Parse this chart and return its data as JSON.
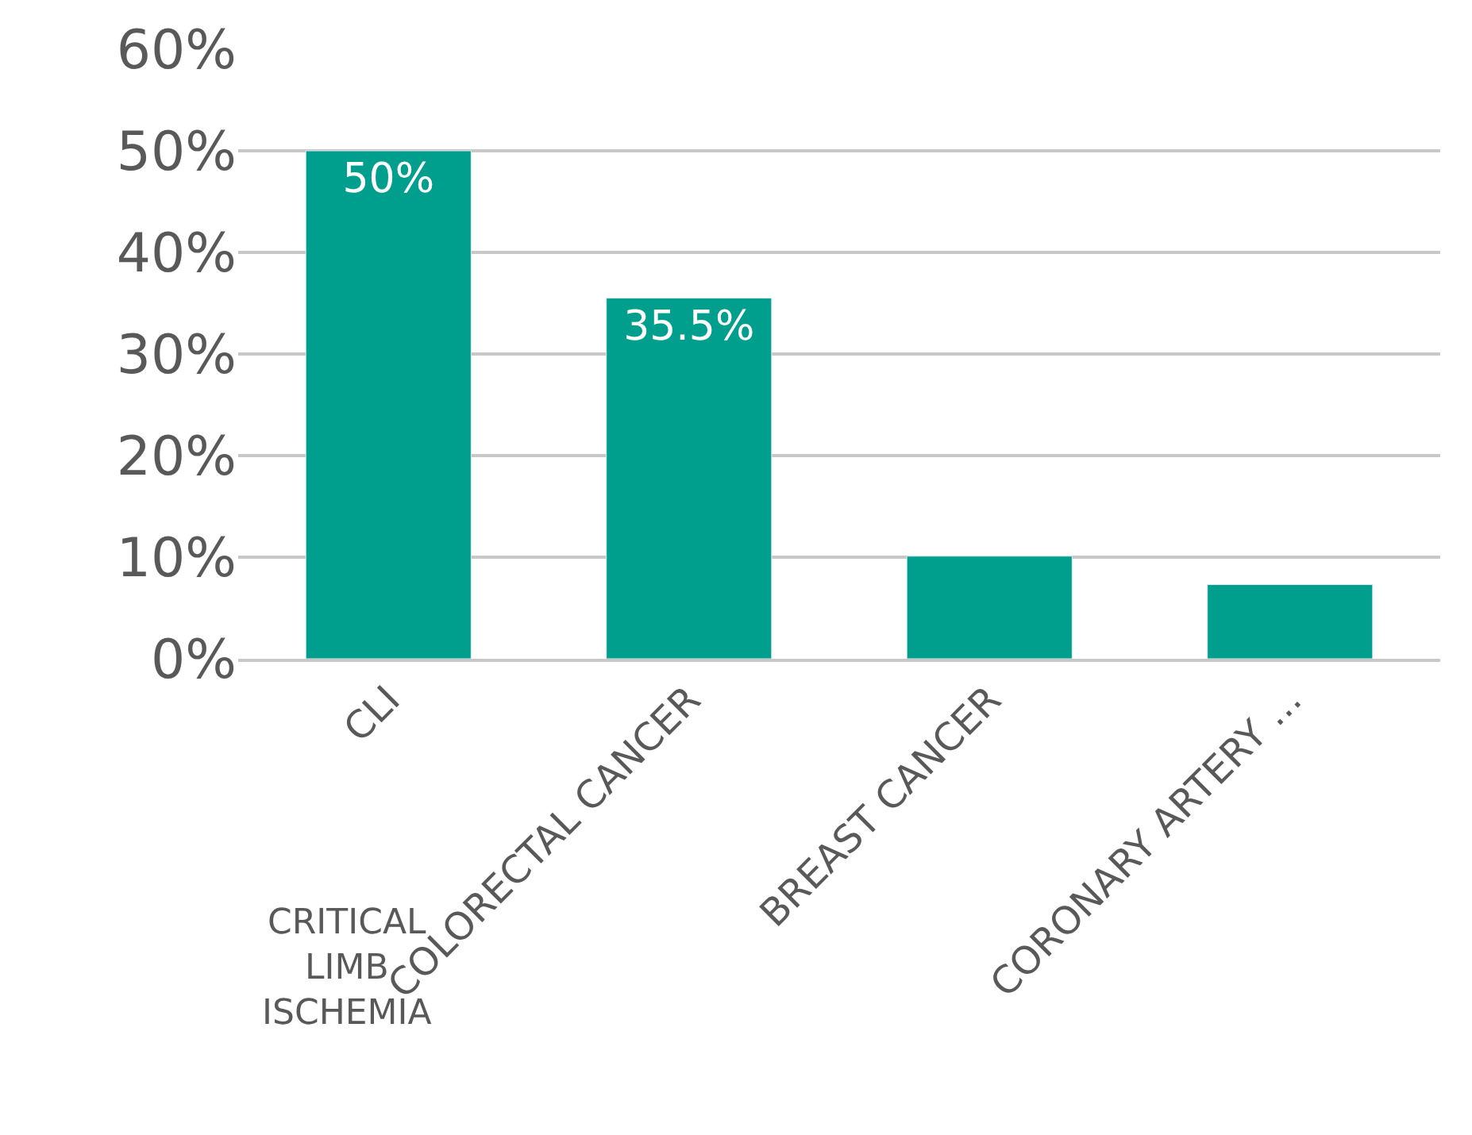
{
  "chart_data": {
    "type": "bar",
    "categories": [
      "CLI",
      "COLORECTAL CANCER",
      "BREAST CANCER",
      "CORONARY ARTERY ..."
    ],
    "values": [
      50,
      35.5,
      10.1,
      7.3
    ],
    "value_labels": [
      "50%",
      "35.5%",
      null,
      null
    ],
    "color": "#009e8c",
    "ylim": [
      0,
      60
    ],
    "yticks": [
      {
        "value": 0,
        "label": "0%"
      },
      {
        "value": 10,
        "label": "10%"
      },
      {
        "value": 20,
        "label": "20%"
      },
      {
        "value": 30,
        "label": "30%"
      },
      {
        "value": 40,
        "label": "40%"
      },
      {
        "value": 50,
        "label": "50%"
      },
      {
        "value": 60,
        "label": "60%"
      }
    ],
    "grid": "y",
    "legend": false,
    "annotations": [
      "CRITICAL\nLIMB\nISCHEMIA"
    ]
  }
}
